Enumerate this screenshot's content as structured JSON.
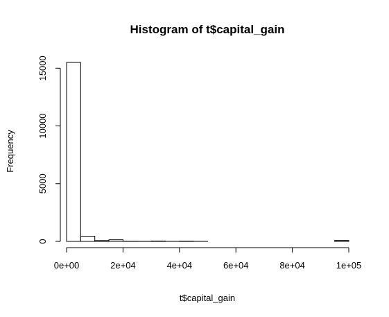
{
  "chart_data": {
    "type": "bar",
    "title": "Histogram of t$capital_gain",
    "xlabel": "t$capital_gain",
    "ylabel": "Frequency",
    "bin_width": 5000,
    "bins": [
      {
        "start": 0,
        "end": 5000,
        "count": 15500
      },
      {
        "start": 5000,
        "end": 10000,
        "count": 450
      },
      {
        "start": 10000,
        "end": 15000,
        "count": 70
      },
      {
        "start": 15000,
        "end": 20000,
        "count": 140
      },
      {
        "start": 20000,
        "end": 25000,
        "count": 15
      },
      {
        "start": 25000,
        "end": 30000,
        "count": 10
      },
      {
        "start": 30000,
        "end": 35000,
        "count": 35
      },
      {
        "start": 35000,
        "end": 40000,
        "count": 5
      },
      {
        "start": 40000,
        "end": 45000,
        "count": 25
      },
      {
        "start": 45000,
        "end": 50000,
        "count": 5
      },
      {
        "start": 50000,
        "end": 55000,
        "count": 0
      },
      {
        "start": 55000,
        "end": 60000,
        "count": 0
      },
      {
        "start": 60000,
        "end": 65000,
        "count": 0
      },
      {
        "start": 65000,
        "end": 70000,
        "count": 0
      },
      {
        "start": 70000,
        "end": 75000,
        "count": 0
      },
      {
        "start": 75000,
        "end": 80000,
        "count": 0
      },
      {
        "start": 80000,
        "end": 85000,
        "count": 0
      },
      {
        "start": 85000,
        "end": 90000,
        "count": 0
      },
      {
        "start": 90000,
        "end": 95000,
        "count": 0
      },
      {
        "start": 95000,
        "end": 100000,
        "count": 80
      }
    ],
    "xlim": [
      0,
      100000
    ],
    "ylim": [
      0,
      15500
    ],
    "x_ticks": [
      {
        "value": 0,
        "label": "0e+00"
      },
      {
        "value": 20000,
        "label": "2e+04"
      },
      {
        "value": 40000,
        "label": "4e+04"
      },
      {
        "value": 60000,
        "label": "6e+04"
      },
      {
        "value": 80000,
        "label": "8e+04"
      },
      {
        "value": 100000,
        "label": "1e+05"
      }
    ],
    "y_ticks": [
      {
        "value": 0,
        "label": "0"
      },
      {
        "value": 5000,
        "label": "5000"
      },
      {
        "value": 10000,
        "label": "10000"
      },
      {
        "value": 15000,
        "label": "15000"
      }
    ],
    "grid": false,
    "bar_fill": "#ffffff",
    "bar_stroke": "#000000"
  }
}
